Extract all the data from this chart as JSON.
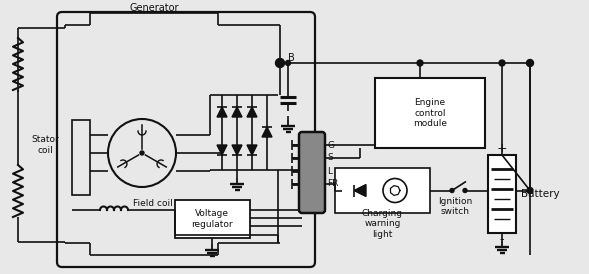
{
  "bg_color": "#e8e8e8",
  "line_color": "#111111",
  "labels": {
    "generator": "Generator",
    "stator_coil": "Stator\ncoil",
    "field_coil": "Field coil",
    "voltage_reg": "Voltage\nregulator",
    "engine_control": "Engine\ncontrol\nmodule",
    "charging_light": "Charging\nwarning\nlight",
    "ignition_switch": "Ignition\nswitch",
    "battery": "Battery",
    "B": "B",
    "G": "G",
    "S": "S",
    "L": "L",
    "FR": "FR",
    "plus": "+",
    "minus": "-"
  }
}
